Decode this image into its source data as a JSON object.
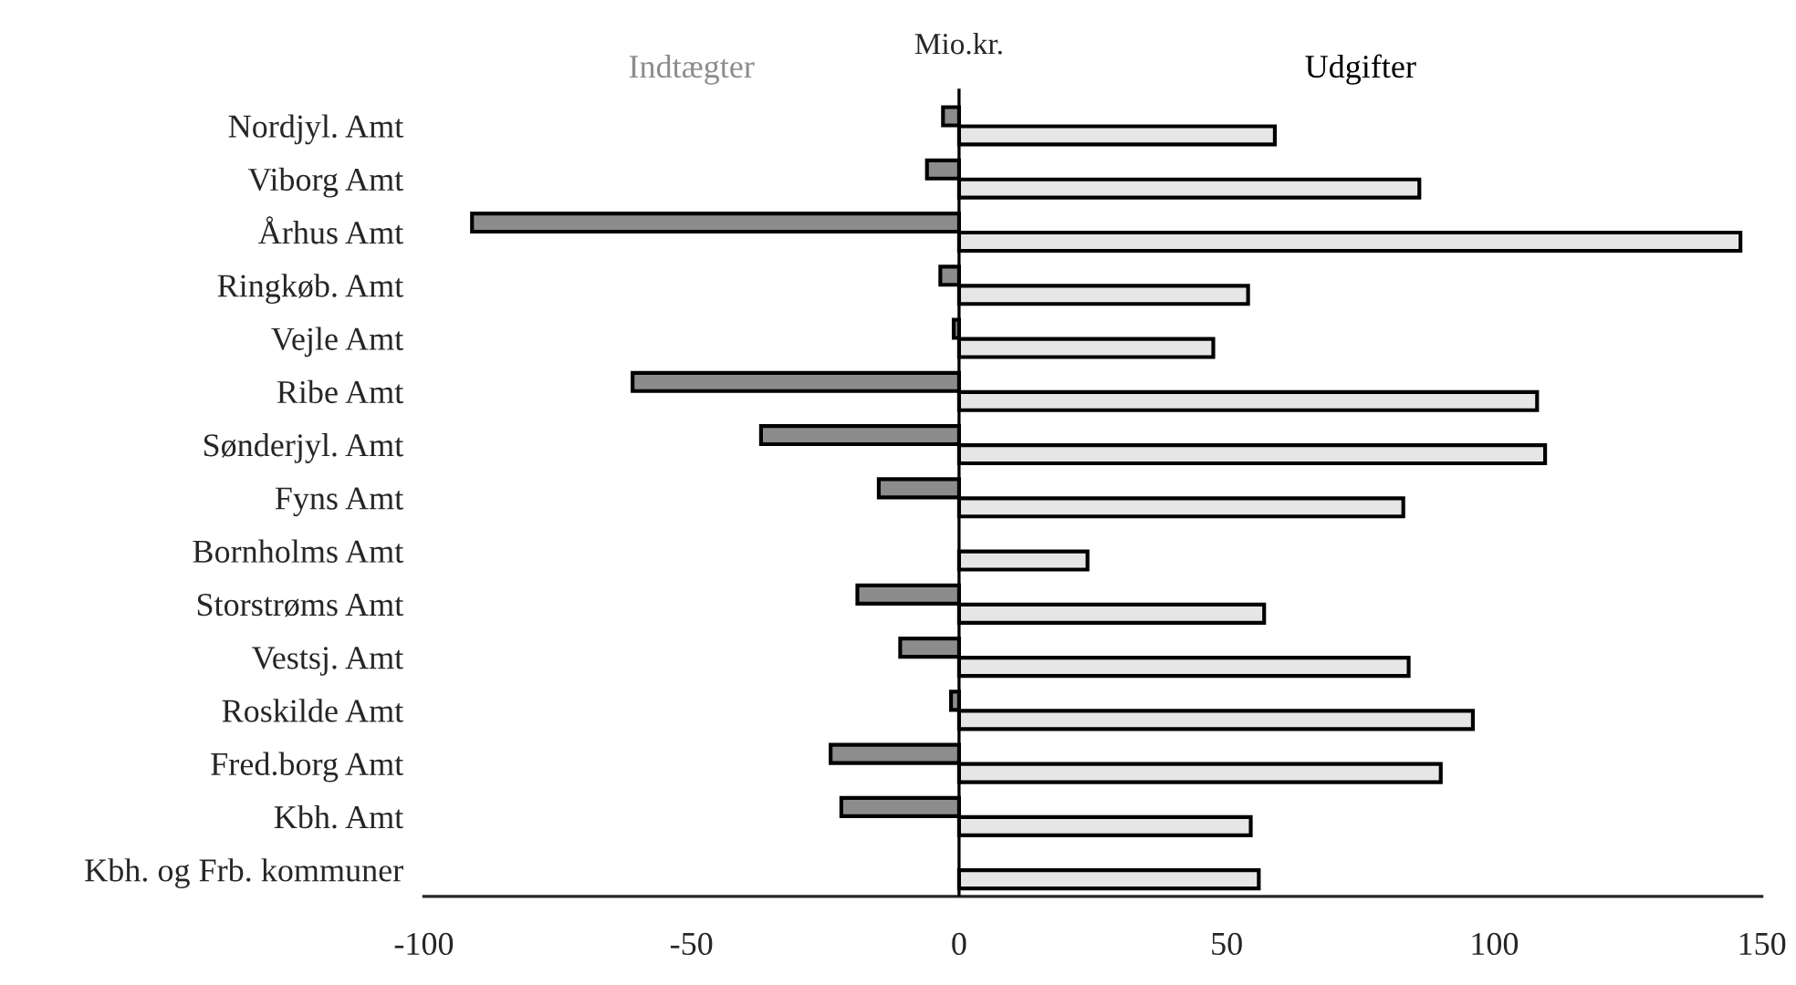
{
  "chart_data": {
    "type": "bar",
    "orientation": "horizontal",
    "xlabel": "Mio.kr.",
    "categories": [
      "Nordjyl. Amt",
      "Viborg Amt",
      "Århus Amt",
      "Ringkøb. Amt",
      "Vejle Amt",
      "Ribe Amt",
      "Sønderjyl. Amt",
      "Fyns Amt",
      "Bornholms Amt",
      "Storstrøms Amt",
      "Vestsj. Amt",
      "Roskilde Amt",
      "Fred.borg Amt",
      "Kbh. Amt",
      "Kbh. og Frb. kommuner"
    ],
    "series": [
      {
        "name": "Indtægter",
        "color": "#8c8c8c",
        "values": [
          -3,
          -6,
          -91,
          -3.5,
          -1,
          -61,
          -37,
          -15,
          null,
          -19,
          -11,
          -1.5,
          -24,
          -22,
          null
        ]
      },
      {
        "name": "Udgifter",
        "color": "#e6e6e6",
        "values": [
          59,
          86,
          146,
          54,
          47.5,
          108,
          109.5,
          83,
          24,
          57,
          84,
          96,
          90,
          54.5,
          56
        ]
      }
    ],
    "xlim": [
      -100,
      150
    ],
    "xticks": [
      -100,
      -50,
      0,
      50,
      100,
      150
    ],
    "ref_lines": [
      {
        "axis": "x",
        "value": 0,
        "color": "#000000"
      }
    ],
    "grid": false,
    "legend": false
  }
}
